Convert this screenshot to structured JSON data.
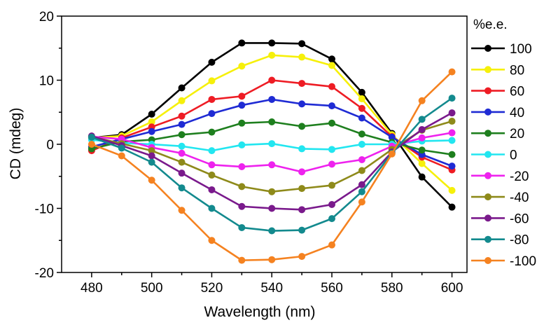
{
  "chart_data": {
    "type": "line",
    "xlabel": "Wavelength (nm)",
    "ylabel": "CD (mdeg)",
    "xlim": [
      470,
      605
    ],
    "ylim": [
      -20,
      20
    ],
    "xticks": [
      480,
      500,
      520,
      540,
      560,
      580,
      600
    ],
    "yticks": [
      -20,
      -10,
      0,
      10,
      20
    ],
    "grid": false,
    "legend_title": "%e.e.",
    "legend_position": "right",
    "x": [
      480,
      490,
      500,
      510,
      520,
      530,
      540,
      550,
      560,
      570,
      580,
      590,
      600
    ],
    "series": [
      {
        "name": "100",
        "color": "#000000",
        "values": [
          1.0,
          1.5,
          4.7,
          8.8,
          12.8,
          15.8,
          15.8,
          15.7,
          13.3,
          8.1,
          1.7,
          -5.1,
          -9.8
        ]
      },
      {
        "name": "80",
        "color": "#f6f00a",
        "values": [
          1.0,
          1.3,
          3.5,
          6.8,
          9.9,
          12.2,
          13.9,
          13.6,
          12.3,
          7.1,
          1.5,
          -3.0,
          -7.2
        ]
      },
      {
        "name": "60",
        "color": "#ee1c24",
        "values": [
          -1.0,
          1.0,
          2.7,
          4.4,
          7.0,
          7.5,
          10.0,
          9.5,
          9.0,
          5.6,
          1.2,
          -2.0,
          -4.0
        ]
      },
      {
        "name": "40",
        "color": "#1f2bd4",
        "values": [
          -0.4,
          0.8,
          2.0,
          3.1,
          4.8,
          6.1,
          7.0,
          6.3,
          6.0,
          4.1,
          1.1,
          -1.6,
          -3.4
        ]
      },
      {
        "name": "20",
        "color": "#1e7f1e",
        "values": [
          -0.7,
          0.4,
          0.7,
          1.5,
          1.9,
          3.3,
          3.5,
          2.8,
          3.3,
          1.6,
          0.3,
          -0.9,
          -1.6
        ]
      },
      {
        "name": "0",
        "color": "#22e6f0",
        "values": [
          0.7,
          0.2,
          0.0,
          -0.3,
          -1.0,
          -0.1,
          0.1,
          -0.7,
          -0.8,
          0.0,
          0.0,
          0.5,
          0.6
        ]
      },
      {
        "name": "-20",
        "color": "#ee22ee",
        "values": [
          1.2,
          0.8,
          -0.5,
          -1.4,
          -3.2,
          -3.5,
          -3.2,
          -4.3,
          -3.1,
          -2.4,
          -0.3,
          1.0,
          1.8
        ]
      },
      {
        "name": "-40",
        "color": "#8e8a1a",
        "values": [
          1.2,
          0.1,
          -1.0,
          -2.8,
          -4.8,
          -6.6,
          -7.4,
          -6.9,
          -6.4,
          -4.1,
          -0.8,
          2.2,
          3.6
        ]
      },
      {
        "name": "-60",
        "color": "#7a1a8c",
        "values": [
          1.3,
          -0.2,
          -1.8,
          -4.5,
          -7.1,
          -9.7,
          -10.0,
          -10.2,
          -9.4,
          -6.3,
          -1.2,
          2.3,
          4.9
        ]
      },
      {
        "name": "-80",
        "color": "#138a8e",
        "values": [
          1.1,
          -0.6,
          -2.8,
          -6.8,
          -10.0,
          -13.0,
          -13.5,
          -13.4,
          -11.6,
          -7.4,
          -1.4,
          3.9,
          7.2
        ]
      },
      {
        "name": "-100",
        "color": "#f58220",
        "values": [
          0.0,
          -1.8,
          -5.6,
          -10.3,
          -15.0,
          -18.1,
          -18.0,
          -17.5,
          -15.7,
          -9.0,
          -1.5,
          6.8,
          11.3
        ]
      }
    ]
  }
}
